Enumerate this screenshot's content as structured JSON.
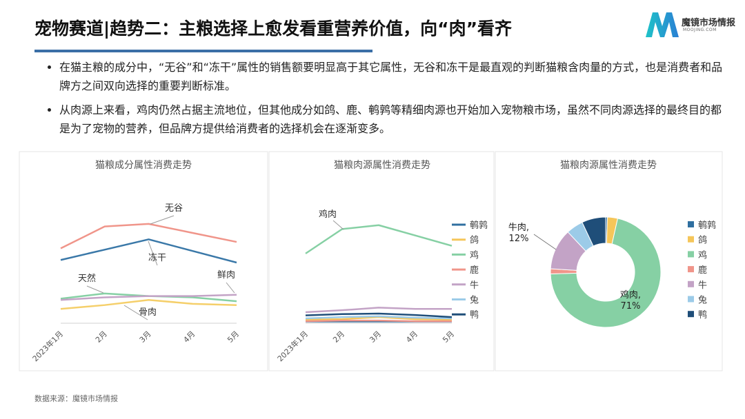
{
  "header": {
    "title": "宠物赛道|趋势二：主粮选择上愈发看重营养价值，向“肉”看齐",
    "brand": "魔镜市场情报",
    "brand_url": "MOOJING.COM"
  },
  "bullets": [
    "在猫主粮的成分中，“无谷”和“冻干”属性的销售额要明显高于其它属性，无谷和冻干是最直观的判断猫粮含肉量的方式，也是消费者和品牌方之间双向选择的重要判断标准。",
    "从肉源上来看，鸡肉仍然占据主流地位，但其他成分如鸽、鹿、鹌鹑等精细肉源也开始加入宠物粮市场，虽然不同肉源选择的最终目的都是为了宠物的营养，但品牌方提供给消费者的选择机会在逐渐变多。"
  ],
  "source": "数据来源：魔镜市场情报",
  "chart_data": [
    {
      "type": "line",
      "title": "猫粮成分属性消费走势",
      "categories": [
        "2023年1月",
        "2月",
        "3月",
        "4月",
        "5月"
      ],
      "ylim": [
        0,
        100
      ],
      "series": [
        {
          "name": "无谷",
          "color": "#f0958a",
          "values": [
            57,
            74,
            76,
            69,
            62
          ]
        },
        {
          "name": "冻干",
          "color": "#3a78a8",
          "values": [
            48,
            56,
            64,
            55,
            46
          ]
        },
        {
          "name": "天然",
          "color": "#86d0a4",
          "values": [
            18,
            22,
            20,
            19,
            16
          ]
        },
        {
          "name": "骨肉",
          "color": "#f5cf6a",
          "values": [
            10,
            13,
            17,
            14,
            13
          ]
        },
        {
          "name": "鲜肉",
          "color": "#c3a3c6",
          "values": [
            17,
            19,
            20,
            20,
            21
          ]
        }
      ]
    },
    {
      "type": "line",
      "title": "猫粮肉源属性消费走势",
      "categories": [
        "2023年1月",
        "2月",
        "3月",
        "4月",
        "5月"
      ],
      "ylim": [
        0,
        100
      ],
      "legend": "right",
      "annotations": [
        "鸡肉"
      ],
      "series": [
        {
          "name": "鹌鹑",
          "color": "#2f6fa0",
          "values": [
            0.3,
            0.3,
            0.3,
            0.3,
            0.3
          ]
        },
        {
          "name": "鸽",
          "color": "#f5c65a",
          "values": [
            1.6,
            2.1,
            3.7,
            2.1,
            1.6
          ]
        },
        {
          "name": "鸡",
          "color": "#86d0a4",
          "values": [
            53,
            72,
            75,
            67,
            59
          ]
        },
        {
          "name": "鹿",
          "color": "#f0958a",
          "values": [
            0.5,
            1,
            1,
            0.5,
            0.5
          ]
        },
        {
          "name": "牛",
          "color": "#c3a3c6",
          "values": [
            7.5,
            9,
            11,
            10,
            10
          ]
        },
        {
          "name": "兔",
          "color": "#9ccbe8",
          "values": [
            2.7,
            3.7,
            4.3,
            3.2,
            2.7
          ]
        },
        {
          "name": "鸭",
          "color": "#1f4e79",
          "values": [
            5,
            6,
            6.4,
            5.3,
            3.7
          ]
        }
      ]
    },
    {
      "type": "pie",
      "title": "猫粮肉源属性消费走势",
      "legend": "right",
      "categories": [
        "鹌鹑",
        "鸽",
        "鸡",
        "鹿",
        "牛",
        "兔",
        "鸭"
      ],
      "colors": [
        "#2f6fa0",
        "#f5c65a",
        "#86d0a4",
        "#f0958a",
        "#c3a3c6",
        "#9ccbe8",
        "#1f4e79"
      ],
      "values": [
        0.5,
        3,
        71,
        1.5,
        12,
        5,
        7
      ],
      "value_labels": [
        null,
        null,
        [
          "鸡肉,",
          "71%"
        ],
        null,
        [
          "牛肉,",
          "12%"
        ],
        null,
        null
      ]
    }
  ]
}
